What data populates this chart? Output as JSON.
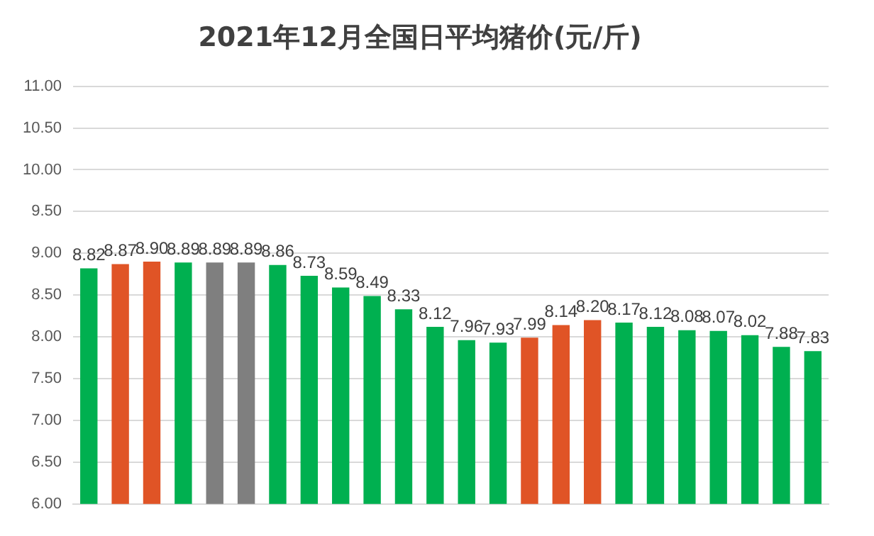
{
  "chart_data": {
    "type": "bar",
    "title": "2021年12月全国日平均猪价(元/斤)",
    "categories": [
      null,
      null,
      null,
      null,
      null,
      null,
      null,
      null,
      null,
      null,
      null,
      null,
      null,
      null,
      null,
      null,
      null,
      null,
      null,
      null,
      null,
      null,
      null,
      null
    ],
    "values": [
      8.82,
      8.87,
      8.9,
      8.89,
      8.89,
      8.89,
      8.86,
      8.73,
      8.59,
      8.49,
      8.33,
      8.12,
      7.96,
      7.93,
      7.99,
      8.14,
      8.2,
      8.17,
      8.12,
      8.08,
      8.07,
      8.02,
      7.88,
      7.83
    ],
    "colors": [
      "#00b050",
      "#e05426",
      "#e05426",
      "#00b050",
      "#7f7f7f",
      "#7f7f7f",
      "#00b050",
      "#00b050",
      "#00b050",
      "#00b050",
      "#00b050",
      "#00b050",
      "#00b050",
      "#00b050",
      "#e05426",
      "#e05426",
      "#e05426",
      "#00b050",
      "#00b050",
      "#00b050",
      "#00b050",
      "#00b050",
      "#00b050",
      "#00b050"
    ],
    "value_labels": [
      "8.82",
      "8.87",
      "8.90",
      "8.89",
      "8.89",
      "8.89",
      "8.86",
      "8.73",
      "8.59",
      "8.49",
      "8.33",
      "8.12",
      "7.96",
      "7.93",
      "7.99",
      "8.14",
      "8.20",
      "8.17",
      "8.12",
      "8.08",
      "8.07",
      "8.02",
      "7.88",
      "7.83"
    ],
    "ylim": [
      6,
      11
    ],
    "yticks": [
      {
        "value": 6,
        "label": "6.00"
      },
      {
        "value": 6.5,
        "label": "6.50"
      },
      {
        "value": 7,
        "label": "7.00"
      },
      {
        "value": 7.5,
        "label": "7.50"
      },
      {
        "value": 8,
        "label": "8.00"
      },
      {
        "value": 8.5,
        "label": "8.50"
      },
      {
        "value": 9,
        "label": "9.00"
      },
      {
        "value": 9.5,
        "label": "9.50"
      },
      {
        "value": 10,
        "label": "10.00"
      },
      {
        "value": 10.5,
        "label": "10.50"
      },
      {
        "value": 11,
        "label": "11.00"
      }
    ],
    "grid": "y",
    "legend": false
  }
}
